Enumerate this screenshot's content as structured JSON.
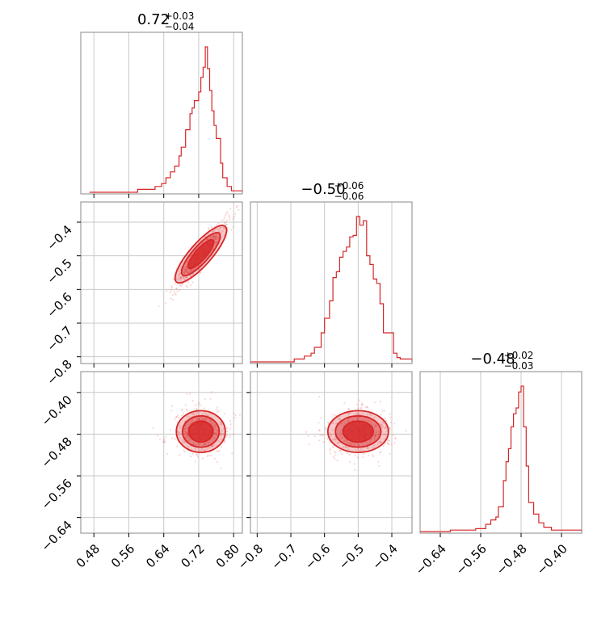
{
  "chart_data": {
    "type": "corner",
    "color": "#d62728",
    "grid": true,
    "panels": [
      {
        "kind": "histogram",
        "title": {
          "value": "0.72",
          "plus": "+0.03",
          "minus": "−0.04"
        },
        "x_range": [
          0.45,
          0.82
        ],
        "bins": [
          {
            "x": 0.47,
            "h": 0.0
          },
          {
            "x": 0.58,
            "h": 0.02
          },
          {
            "x": 0.62,
            "h": 0.04
          },
          {
            "x": 0.635,
            "h": 0.06
          },
          {
            "x": 0.645,
            "h": 0.1
          },
          {
            "x": 0.655,
            "h": 0.14
          },
          {
            "x": 0.665,
            "h": 0.18
          },
          {
            "x": 0.675,
            "h": 0.25
          },
          {
            "x": 0.68,
            "h": 0.31
          },
          {
            "x": 0.69,
            "h": 0.43
          },
          {
            "x": 0.7,
            "h": 0.54
          },
          {
            "x": 0.705,
            "h": 0.58
          },
          {
            "x": 0.71,
            "h": 0.63
          },
          {
            "x": 0.72,
            "h": 0.69
          },
          {
            "x": 0.725,
            "h": 0.79
          },
          {
            "x": 0.73,
            "h": 0.86
          },
          {
            "x": 0.735,
            "h": 1.0
          },
          {
            "x": 0.74,
            "h": 0.85
          },
          {
            "x": 0.745,
            "h": 0.7
          },
          {
            "x": 0.75,
            "h": 0.56
          },
          {
            "x": 0.755,
            "h": 0.46
          },
          {
            "x": 0.76,
            "h": 0.37
          },
          {
            "x": 0.77,
            "h": 0.2
          },
          {
            "x": 0.775,
            "h": 0.1
          },
          {
            "x": 0.785,
            "h": 0.04
          },
          {
            "x": 0.795,
            "h": 0.01
          },
          {
            "x": 0.82,
            "h": 0.0
          }
        ]
      },
      {
        "kind": "histogram",
        "title": {
          "value": "−0.50",
          "plus": "+0.06",
          "minus": "−0.06"
        },
        "x_range": [
          -0.82,
          -0.34
        ],
        "bins": [
          {
            "x": -0.82,
            "h": 0.0
          },
          {
            "x": -0.69,
            "h": 0.02
          },
          {
            "x": -0.66,
            "h": 0.04
          },
          {
            "x": -0.64,
            "h": 0.06
          },
          {
            "x": -0.63,
            "h": 0.1
          },
          {
            "x": -0.61,
            "h": 0.2
          },
          {
            "x": -0.6,
            "h": 0.3
          },
          {
            "x": -0.585,
            "h": 0.42
          },
          {
            "x": -0.575,
            "h": 0.58
          },
          {
            "x": -0.565,
            "h": 0.62
          },
          {
            "x": -0.555,
            "h": 0.72
          },
          {
            "x": -0.545,
            "h": 0.76
          },
          {
            "x": -0.535,
            "h": 0.79
          },
          {
            "x": -0.525,
            "h": 0.86
          },
          {
            "x": -0.515,
            "h": 0.87
          },
          {
            "x": -0.505,
            "h": 1.0
          },
          {
            "x": -0.495,
            "h": 0.94
          },
          {
            "x": -0.485,
            "h": 0.97
          },
          {
            "x": -0.475,
            "h": 0.73
          },
          {
            "x": -0.465,
            "h": 0.67
          },
          {
            "x": -0.455,
            "h": 0.57
          },
          {
            "x": -0.445,
            "h": 0.54
          },
          {
            "x": -0.435,
            "h": 0.4
          },
          {
            "x": -0.425,
            "h": 0.2
          },
          {
            "x": -0.405,
            "h": 0.2
          },
          {
            "x": -0.395,
            "h": 0.06
          },
          {
            "x": -0.385,
            "h": 0.03
          },
          {
            "x": -0.375,
            "h": 0.02
          },
          {
            "x": -0.34,
            "h": 0.0
          }
        ]
      },
      {
        "kind": "histogram",
        "title": {
          "value": "−0.48",
          "plus": "+0.02",
          "minus": "−0.03"
        },
        "x_range": [
          -0.68,
          -0.36
        ],
        "bins": [
          {
            "x": -0.68,
            "h": 0.0
          },
          {
            "x": -0.62,
            "h": 0.01
          },
          {
            "x": -0.57,
            "h": 0.02
          },
          {
            "x": -0.55,
            "h": 0.05
          },
          {
            "x": -0.54,
            "h": 0.08
          },
          {
            "x": -0.53,
            "h": 0.1
          },
          {
            "x": -0.525,
            "h": 0.17
          },
          {
            "x": -0.515,
            "h": 0.35
          },
          {
            "x": -0.51,
            "h": 0.48
          },
          {
            "x": -0.505,
            "h": 0.57
          },
          {
            "x": -0.5,
            "h": 0.72
          },
          {
            "x": -0.495,
            "h": 0.81
          },
          {
            "x": -0.49,
            "h": 0.85
          },
          {
            "x": -0.485,
            "h": 0.96
          },
          {
            "x": -0.48,
            "h": 1.0
          },
          {
            "x": -0.475,
            "h": 0.72
          },
          {
            "x": -0.47,
            "h": 0.45
          },
          {
            "x": -0.465,
            "h": 0.2
          },
          {
            "x": -0.455,
            "h": 0.12
          },
          {
            "x": -0.445,
            "h": 0.06
          },
          {
            "x": -0.435,
            "h": 0.03
          },
          {
            "x": -0.42,
            "h": 0.01
          },
          {
            "x": -0.36,
            "h": 0.0
          }
        ]
      },
      {
        "kind": "scatter-contour",
        "x_range": [
          0.45,
          0.82
        ],
        "y_range": [
          -0.82,
          -0.34
        ],
        "center": [
          0.725,
          -0.495
        ],
        "spread": [
          0.028,
          0.045
        ],
        "correlation": 0.92,
        "outline_levels": [
          1.0,
          1.5,
          2.0
        ]
      },
      {
        "kind": "scatter-contour",
        "x_range": [
          0.45,
          0.82
        ],
        "y_range": [
          -0.67,
          -0.36
        ],
        "center": [
          0.725,
          -0.475
        ],
        "spread": [
          0.028,
          0.02
        ],
        "correlation": 0.0,
        "outline_levels": [
          1.0,
          1.5,
          2.0
        ]
      },
      {
        "kind": "scatter-contour",
        "x_range": [
          -0.82,
          -0.34
        ],
        "y_range": [
          -0.67,
          -0.36
        ],
        "center": [
          -0.5,
          -0.475
        ],
        "spread": [
          0.045,
          0.02
        ],
        "correlation": 0.0,
        "outline_levels": [
          1.0,
          1.5,
          2.0
        ]
      }
    ],
    "axes": {
      "p1_ticks": [
        "0.48",
        "0.56",
        "0.64",
        "0.72",
        "0.80"
      ],
      "p1_tick_values": [
        0.48,
        0.56,
        0.64,
        0.72,
        0.8
      ],
      "p2_ticks": [
        "−0.8",
        "−0.7",
        "−0.6",
        "−0.5",
        "−0.4"
      ],
      "p2_tick_values": [
        -0.8,
        -0.7,
        -0.6,
        -0.5,
        -0.4
      ],
      "p3_ticks": [
        "−0.64",
        "−0.56",
        "−0.48",
        "−0.40"
      ],
      "p3_tick_values": [
        -0.64,
        -0.56,
        -0.48,
        -0.4
      ],
      "left_p2_ticks": [
        "−0.4",
        "−0.5",
        "−0.6",
        "−0.7",
        "−0.8"
      ],
      "left_p2_tick_values": [
        -0.4,
        -0.5,
        -0.6,
        -0.7,
        -0.8
      ],
      "left_p3_ticks": [
        "−0.40",
        "−0.48",
        "−0.56",
        "−0.64"
      ],
      "left_p3_tick_values": [
        -0.4,
        -0.48,
        -0.56,
        -0.64
      ]
    }
  }
}
